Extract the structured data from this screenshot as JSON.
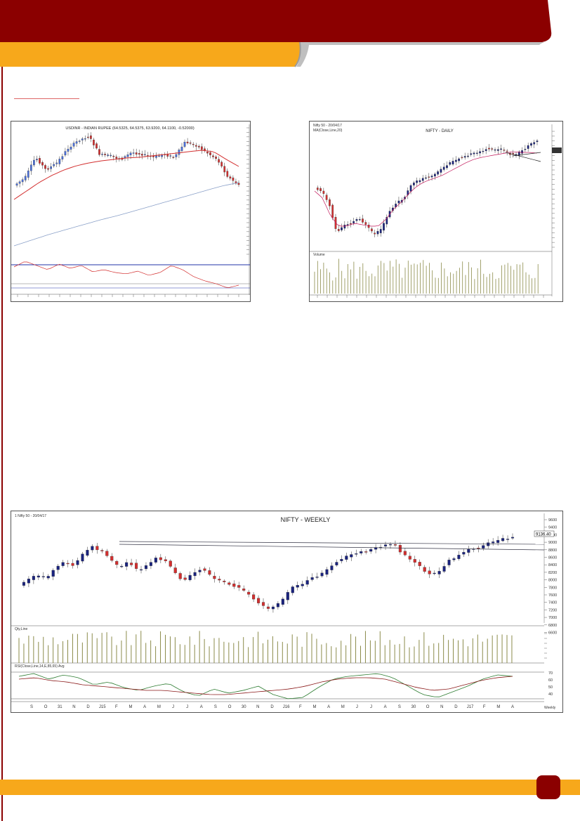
{
  "colors": {
    "header_red": "#8b0000",
    "header_yellow": "#f7a81b",
    "bull": "#1a237e",
    "bear": "#d32f2f"
  },
  "chart1": {
    "title": "USDINR - INDIAN RUPEE (64.5325, 64.5375, 63.9200, 64.1100, -0.52000)"
  },
  "chart2": {
    "header": "Nifty 50 - 20/04/17",
    "sub": "MA(Close,Line,20)",
    "title": "NIFTY - DAILY",
    "vol_label": "Volume"
  },
  "chart3": {
    "header": "1 Nifty 50 - 20/04/17",
    "title": "NIFTY - WEEKLY",
    "vol_label": "Qty,Line",
    "rsi_label": "RSI(Close,Line,14,E,85,65)   Avg",
    "period_label": "Weekly",
    "price_ticks": [
      "9600",
      "9400",
      "9200",
      "9000",
      "8800",
      "8600",
      "8400",
      "8200",
      "8000",
      "7800",
      "7600",
      "7400",
      "7200",
      "7000",
      "6800",
      "6600"
    ],
    "last_price": "9136.40",
    "rsi_ticks": [
      "70",
      "60",
      "50",
      "40"
    ],
    "x_labels": [
      "S",
      "O",
      "31",
      "N",
      "D",
      "J15",
      "F",
      "M",
      "A",
      "M",
      "J",
      "J",
      "A",
      "S",
      "O",
      "30",
      "N",
      "D",
      "J16",
      "F",
      "M",
      "A",
      "M",
      "J",
      "J",
      "A",
      "S",
      "30",
      "O",
      "N",
      "D",
      "J17",
      "F",
      "M",
      "A"
    ]
  },
  "footer": {
    "page_number": ""
  }
}
